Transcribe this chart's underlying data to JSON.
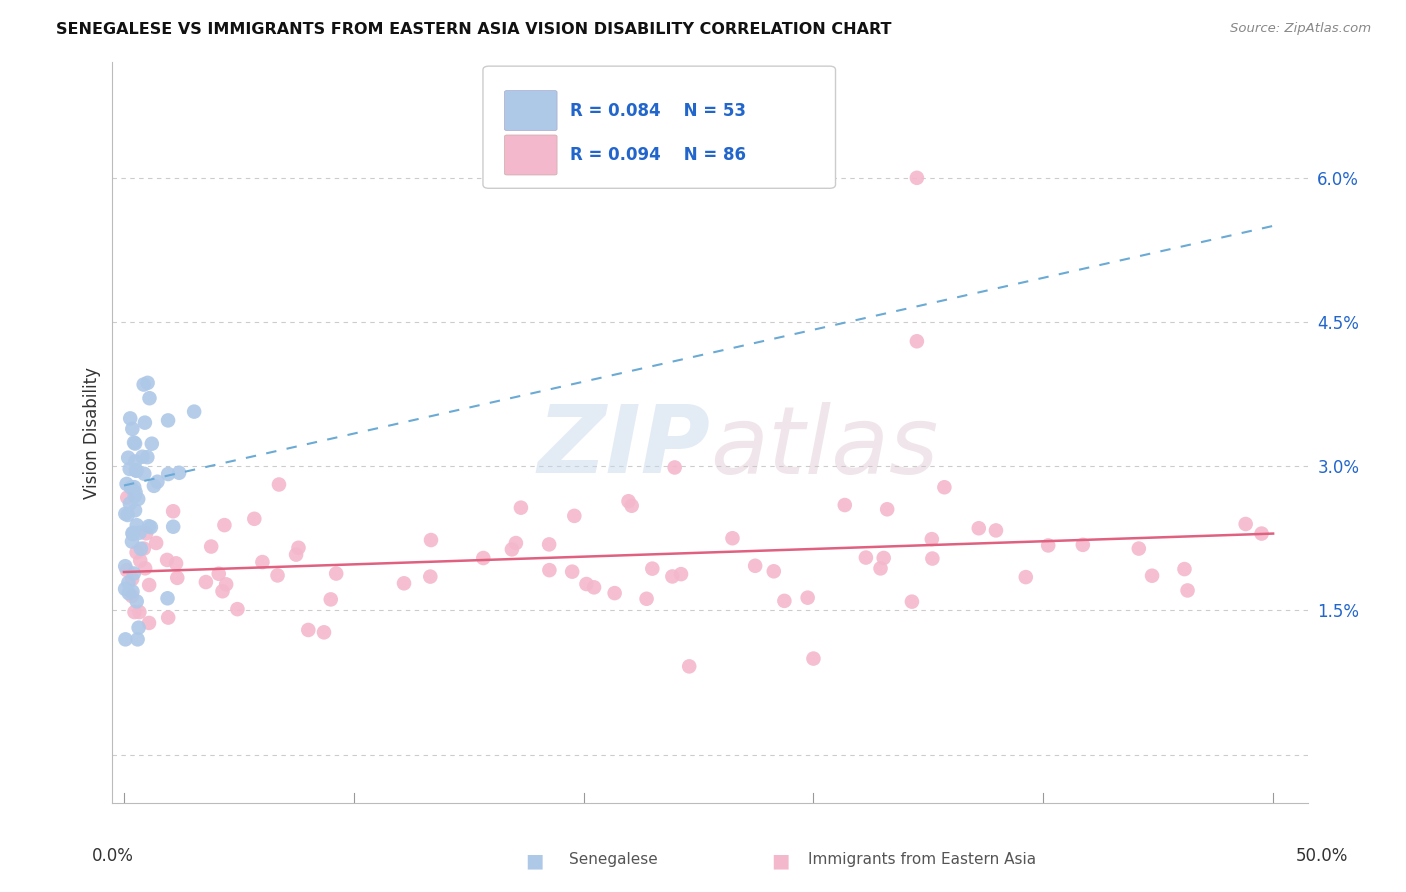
{
  "title": "SENEGALESE VS IMMIGRANTS FROM EASTERN ASIA VISION DISABILITY CORRELATION CHART",
  "source": "Source: ZipAtlas.com",
  "ylabel": "Vision Disability",
  "blue_color": "#aec8e8",
  "blue_edge_color": "#6aaad4",
  "pink_color": "#f4b8cc",
  "pink_edge_color": "#e87a9a",
  "blue_line_color": "#6aaad4",
  "pink_line_color": "#e06080",
  "legend_text_color": "#2266cc",
  "R_blue": 0.084,
  "N_blue": 53,
  "R_pink": 0.094,
  "N_pink": 86,
  "blue_trend_x0": 0.0,
  "blue_trend_y0": 0.028,
  "blue_trend_x1": 0.5,
  "blue_trend_y1": 0.055,
  "pink_trend_x0": 0.0,
  "pink_trend_y0": 0.019,
  "pink_trend_x1": 0.5,
  "pink_trend_y1": 0.023,
  "ylim_low": -0.005,
  "ylim_high": 0.072,
  "xlim_low": -0.005,
  "xlim_high": 0.515,
  "ytick_vals": [
    0.0,
    0.015,
    0.03,
    0.045,
    0.06
  ],
  "ytick_labels": [
    "",
    "1.5%",
    "3.0%",
    "4.5%",
    "6.0%"
  ],
  "grid_color": "#cccccc",
  "watermark_text": "ZIPatlas",
  "legend_label_blue": "Senegalese",
  "legend_label_pink": "Immigrants from Eastern Asia"
}
